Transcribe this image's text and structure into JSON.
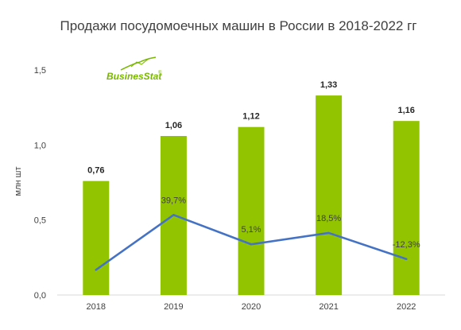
{
  "chart_data": {
    "type": "bar",
    "title": "Продажи посудомоечных машин в России в 2018-2022 гг",
    "ylabel": "млн шт",
    "xlabel": "",
    "ylim": [
      0,
      1.5
    ],
    "yticks": [
      "0,0",
      "0,5",
      "1,0",
      "1,5"
    ],
    "yticks_values": [
      0,
      0.5,
      1.0,
      1.5
    ],
    "categories": [
      "2018",
      "2019",
      "2020",
      "2021",
      "2022"
    ],
    "series": [
      {
        "type": "bar",
        "values": [
          0.76,
          1.06,
          1.12,
          1.33,
          1.16
        ],
        "labels": [
          "0,76",
          "1,06",
          "1,12",
          "1,33",
          "1,16"
        ],
        "color": "#92c400"
      },
      {
        "type": "line",
        "values": [
          null,
          39.7,
          5.1,
          18.5,
          -12.3
        ],
        "labels": [
          "",
          "39,7%",
          "5,1%",
          "18,5%",
          "-12,3%"
        ],
        "color": "#4472c4"
      }
    ],
    "grid": false,
    "legend": "none"
  },
  "logo": {
    "text": "BusinesStat",
    "mark": "®",
    "color": "#7ab800"
  }
}
